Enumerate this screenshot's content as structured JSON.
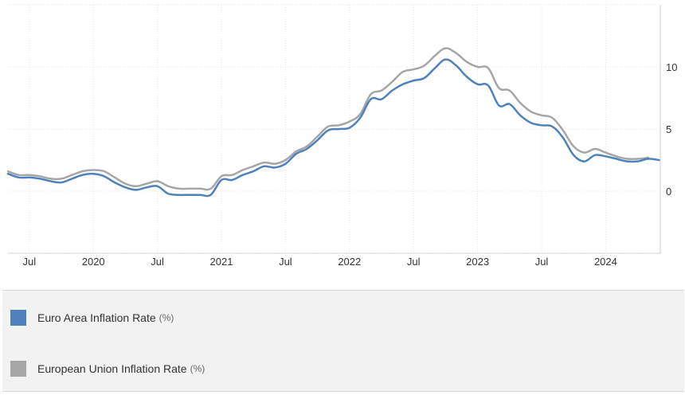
{
  "chart_data": {
    "type": "line",
    "x_ticks": [
      "Jul",
      "2020",
      "Jul",
      "2021",
      "Jul",
      "2022",
      "Jul",
      "2023",
      "Jul",
      "2024"
    ],
    "y_ticks": [
      0,
      5,
      10
    ],
    "ylim": [
      -5,
      15
    ],
    "grid": true,
    "legend_position": "bottom",
    "series": [
      {
        "name": "Euro Area Inflation Rate",
        "unit": "(%)",
        "color": "#4f81bd",
        "x": [
          "2019-05",
          "2019-06",
          "2019-07",
          "2019-08",
          "2019-09",
          "2019-10",
          "2019-11",
          "2019-12",
          "2020-01",
          "2020-02",
          "2020-03",
          "2020-04",
          "2020-05",
          "2020-06",
          "2020-07",
          "2020-08",
          "2020-09",
          "2020-10",
          "2020-11",
          "2020-12",
          "2021-01",
          "2021-02",
          "2021-03",
          "2021-04",
          "2021-05",
          "2021-06",
          "2021-07",
          "2021-08",
          "2021-09",
          "2021-10",
          "2021-11",
          "2021-12",
          "2022-01",
          "2022-02",
          "2022-03",
          "2022-04",
          "2022-05",
          "2022-06",
          "2022-07",
          "2022-08",
          "2022-09",
          "2022-10",
          "2022-11",
          "2022-12",
          "2023-01",
          "2023-02",
          "2023-03",
          "2023-04",
          "2023-05",
          "2023-06",
          "2023-07",
          "2023-08",
          "2023-09",
          "2023-10",
          "2023-11",
          "2023-12",
          "2024-01",
          "2024-02",
          "2024-03",
          "2024-04",
          "2024-05",
          "2024-06"
        ],
        "values": [
          1.4,
          1.1,
          1.1,
          1.0,
          0.8,
          0.7,
          1.0,
          1.3,
          1.4,
          1.2,
          0.7,
          0.3,
          0.1,
          0.3,
          0.4,
          -0.2,
          -0.3,
          -0.3,
          -0.3,
          -0.3,
          0.9,
          0.9,
          1.3,
          1.6,
          2.0,
          1.9,
          2.2,
          3.0,
          3.4,
          4.1,
          4.9,
          5.0,
          5.1,
          5.9,
          7.4,
          7.4,
          8.1,
          8.6,
          8.9,
          9.1,
          9.9,
          10.6,
          10.1,
          9.2,
          8.6,
          8.5,
          6.9,
          7.0,
          6.1,
          5.5,
          5.3,
          5.2,
          4.3,
          2.9,
          2.4,
          2.9,
          2.8,
          2.6,
          2.4,
          2.4,
          2.6,
          2.5
        ]
      },
      {
        "name": "European Union Inflation Rate",
        "unit": "(%)",
        "color": "#a6a6a6",
        "x": [
          "2019-05",
          "2019-06",
          "2019-07",
          "2019-08",
          "2019-09",
          "2019-10",
          "2019-11",
          "2019-12",
          "2020-01",
          "2020-02",
          "2020-03",
          "2020-04",
          "2020-05",
          "2020-06",
          "2020-07",
          "2020-08",
          "2020-09",
          "2020-10",
          "2020-11",
          "2020-12",
          "2021-01",
          "2021-02",
          "2021-03",
          "2021-04",
          "2021-05",
          "2021-06",
          "2021-07",
          "2021-08",
          "2021-09",
          "2021-10",
          "2021-11",
          "2021-12",
          "2022-01",
          "2022-02",
          "2022-03",
          "2022-04",
          "2022-05",
          "2022-06",
          "2022-07",
          "2022-08",
          "2022-09",
          "2022-10",
          "2022-11",
          "2022-12",
          "2023-01",
          "2023-02",
          "2023-03",
          "2023-04",
          "2023-05",
          "2023-06",
          "2023-07",
          "2023-08",
          "2023-09",
          "2023-10",
          "2023-11",
          "2023-12",
          "2024-01",
          "2024-02",
          "2024-03",
          "2024-04",
          "2024-05"
        ],
        "values": [
          1.6,
          1.3,
          1.3,
          1.2,
          1.0,
          1.0,
          1.3,
          1.6,
          1.7,
          1.6,
          1.1,
          0.6,
          0.4,
          0.6,
          0.8,
          0.4,
          0.2,
          0.2,
          0.2,
          0.2,
          1.2,
          1.3,
          1.7,
          2.0,
          2.3,
          2.2,
          2.5,
          3.2,
          3.6,
          4.4,
          5.2,
          5.3,
          5.6,
          6.2,
          7.8,
          8.1,
          8.8,
          9.6,
          9.8,
          10.1,
          10.9,
          11.5,
          11.1,
          10.4,
          10.0,
          9.9,
          8.3,
          8.1,
          7.1,
          6.4,
          6.1,
          5.9,
          4.9,
          3.6,
          3.1,
          3.4,
          3.1,
          2.8,
          2.6,
          2.6,
          2.7
        ]
      }
    ]
  }
}
